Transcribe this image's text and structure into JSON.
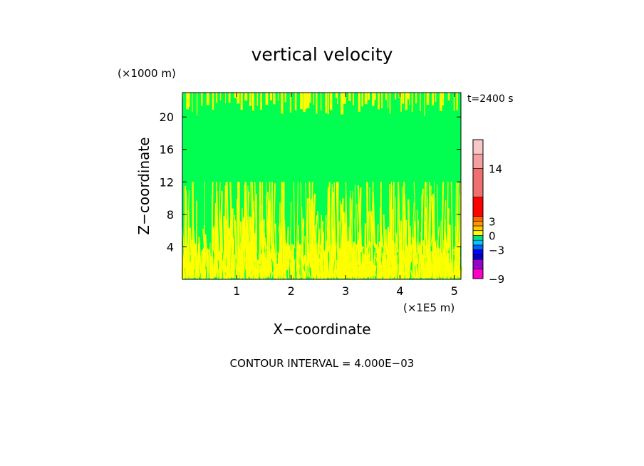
{
  "chart_data": {
    "type": "heatmap",
    "title": "vertical velocity",
    "xlabel": "X−coordinate",
    "ylabel": "Z−coordinate",
    "x_unit_label": "(×1E5 m)",
    "y_unit_label": "(×1000 m)",
    "time_label": "t=2400 s",
    "footer": "CONTOUR INTERVAL = 4.000E−03",
    "xlim": [
      0,
      5.12
    ],
    "ylim": [
      0,
      23
    ],
    "x_ticks": [
      1,
      2,
      3,
      4,
      5
    ],
    "y_ticks": [
      4,
      8,
      12,
      16,
      20
    ],
    "colorbar": {
      "tick_labels": [
        {
          "value": 14,
          "label": "14"
        },
        {
          "value": 3,
          "label": "3"
        },
        {
          "value": 0,
          "label": "0"
        },
        {
          "value": -3,
          "label": "−3"
        },
        {
          "value": -9,
          "label": "−9"
        }
      ],
      "levels": [
        {
          "from": -9,
          "to": -7,
          "color": "#ff00c8"
        },
        {
          "from": -7,
          "to": -5,
          "color": "#9600c8"
        },
        {
          "from": -5,
          "to": -4,
          "color": "#0000c8"
        },
        {
          "from": -4,
          "to": -3,
          "color": "#0000ff"
        },
        {
          "from": -3,
          "to": -2,
          "color": "#0064ff"
        },
        {
          "from": -2,
          "to": -1,
          "color": "#00c8ff"
        },
        {
          "from": -1,
          "to": 0,
          "color": "#00e18c"
        },
        {
          "from": 0,
          "to": 1,
          "color": "#ffff00"
        },
        {
          "from": 1,
          "to": 2,
          "color": "#ffc800"
        },
        {
          "from": 2,
          "to": 3,
          "color": "#ff9600"
        },
        {
          "from": 3,
          "to": 4,
          "color": "#ff6400"
        },
        {
          "from": 4,
          "to": 8,
          "color": "#ff0000"
        },
        {
          "from": 8,
          "to": 14,
          "color": "#f07070"
        },
        {
          "from": 14,
          "to": 17,
          "color": "#f5a0a0"
        },
        {
          "from": 17,
          "to": 20,
          "color": "#f8c8c8"
        }
      ]
    },
    "background_color": "#00ff50",
    "updraft_color": "#ffff00",
    "upper_fingers_from": 23,
    "upper_fingers_to": 20.5,
    "lower_plume_top": 12
  }
}
